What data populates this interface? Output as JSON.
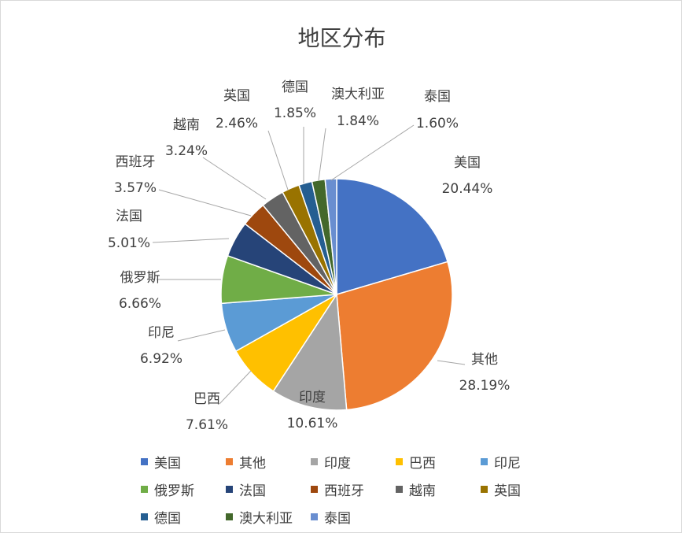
{
  "chart_data": {
    "type": "pie",
    "title": "地区分布",
    "legend_position": "bottom",
    "slices": [
      {
        "name": "美国",
        "value": 20.44,
        "label": "20.44%",
        "color": "#4472C4"
      },
      {
        "name": "其他",
        "value": 28.19,
        "label": "28.19%",
        "color": "#ED7D31"
      },
      {
        "name": "印度",
        "value": 10.61,
        "label": "10.61%",
        "color": "#A5A5A5"
      },
      {
        "name": "巴西",
        "value": 7.61,
        "label": "7.61%",
        "color": "#FFC000"
      },
      {
        "name": "印尼",
        "value": 6.92,
        "label": "6.92%",
        "color": "#5B9BD5"
      },
      {
        "name": "俄罗斯",
        "value": 6.66,
        "label": "6.66%",
        "color": "#70AD47"
      },
      {
        "name": "法国",
        "value": 5.01,
        "label": "5.01%",
        "color": "#264478"
      },
      {
        "name": "西班牙",
        "value": 3.57,
        "label": "3.57%",
        "color": "#9E480E"
      },
      {
        "name": "越南",
        "value": 3.24,
        "label": "3.24%",
        "color": "#636363"
      },
      {
        "name": "英国",
        "value": 2.46,
        "label": "2.46%",
        "color": "#997300"
      },
      {
        "name": "德国",
        "value": 1.85,
        "label": "1.85%",
        "color": "#255E91"
      },
      {
        "name": "澳大利亚",
        "value": 1.84,
        "label": "1.84%",
        "color": "#43682B"
      },
      {
        "name": "泰国",
        "value": 1.6,
        "label": "1.60%",
        "color": "#698ED0"
      }
    ]
  }
}
